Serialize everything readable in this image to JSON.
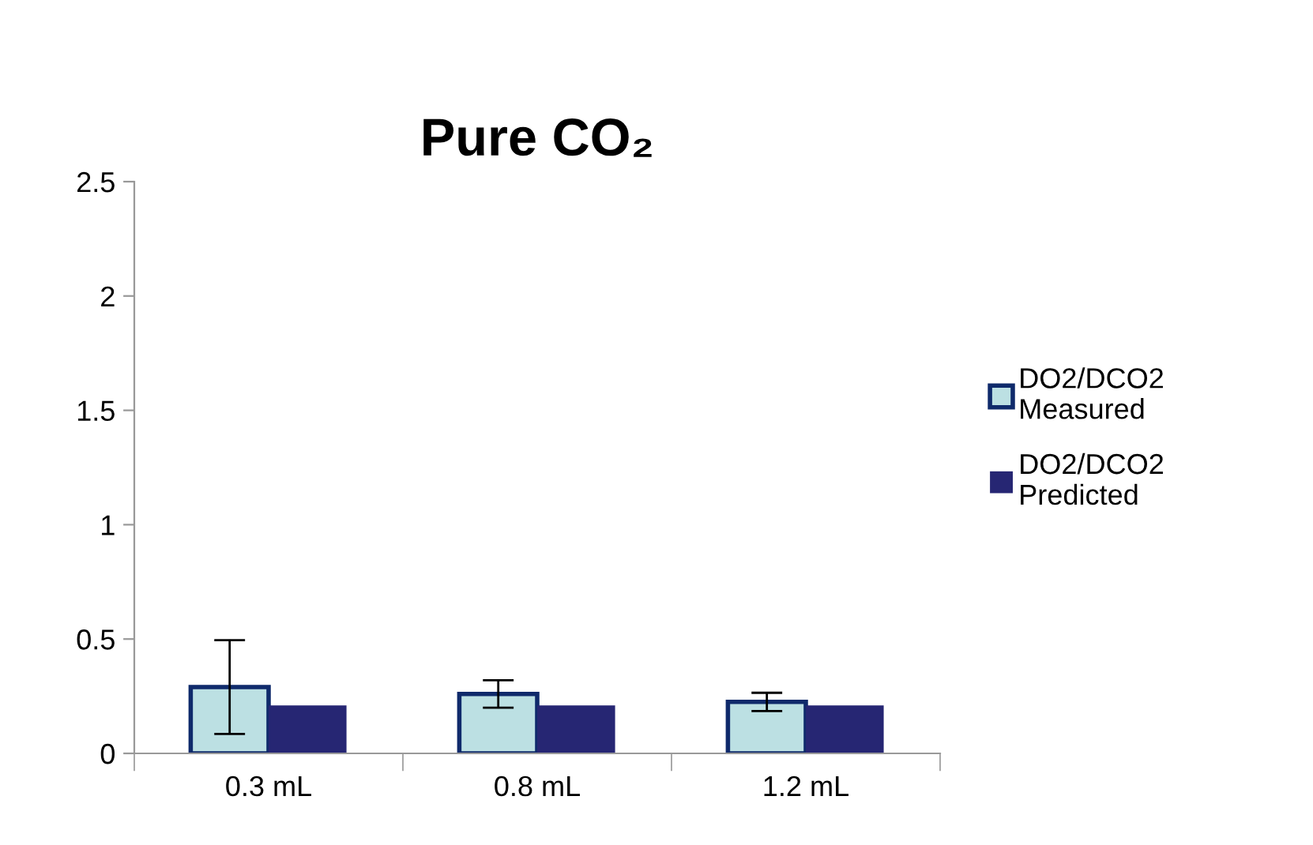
{
  "chart_data": {
    "type": "bar",
    "title": "Pure CO₂",
    "categories": [
      "0.3 mL",
      "0.8 mL",
      "1.2 mL"
    ],
    "series": [
      {
        "name": "DO2/DCO2\nMeasured",
        "color": "#bce0e3",
        "values": [
          0.29,
          0.26,
          0.225
        ],
        "errors": [
          0.205,
          0.06,
          0.04
        ]
      },
      {
        "name": "DO2/DCO2\nPredicted",
        "color": "#262673",
        "values": [
          0.21,
          0.21,
          0.21
        ]
      }
    ],
    "ylim": [
      0,
      2.5
    ],
    "yticks": [
      0,
      0.5,
      1,
      1.5,
      2,
      2.5
    ],
    "grid": false,
    "legend": "right"
  }
}
